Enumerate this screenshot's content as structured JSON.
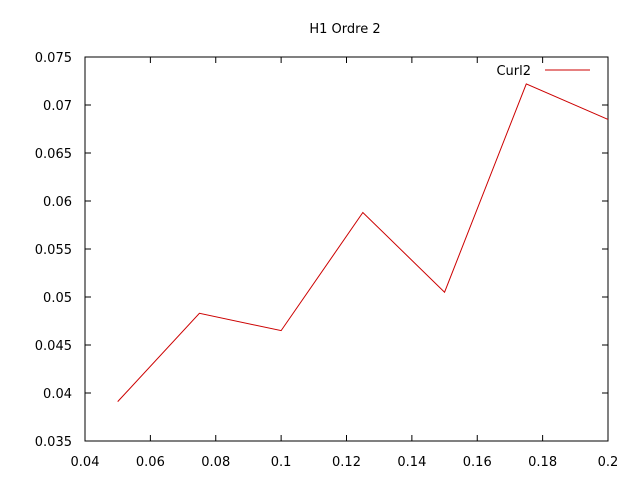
{
  "chart_data": {
    "type": "line",
    "title": "H1 Ordre 2",
    "xlabel": "",
    "ylabel": "",
    "xlim": [
      0.04,
      0.2
    ],
    "ylim": [
      0.035,
      0.075
    ],
    "xticks": [
      0.04,
      0.06,
      0.08,
      0.1,
      0.12,
      0.14,
      0.16,
      0.18,
      0.2
    ],
    "xtick_labels": [
      "0.04",
      "0.06",
      "0.08",
      "0.1",
      "0.12",
      "0.14",
      "0.16",
      "0.18",
      "0.2"
    ],
    "yticks": [
      0.035,
      0.04,
      0.045,
      0.05,
      0.055,
      0.06,
      0.065,
      0.07,
      0.075
    ],
    "ytick_labels": [
      "0.035",
      "0.04",
      "0.045",
      "0.05",
      "0.055",
      "0.06",
      "0.065",
      "0.07",
      "0.075"
    ],
    "grid": false,
    "legend_position": "top-right",
    "series": [
      {
        "name": "Curl2",
        "color": "#cc0000",
        "x": [
          0.05,
          0.075,
          0.1,
          0.125,
          0.15,
          0.175,
          0.2
        ],
        "y": [
          0.0391,
          0.0483,
          0.0465,
          0.0588,
          0.0505,
          0.0722,
          0.0685
        ]
      }
    ]
  }
}
